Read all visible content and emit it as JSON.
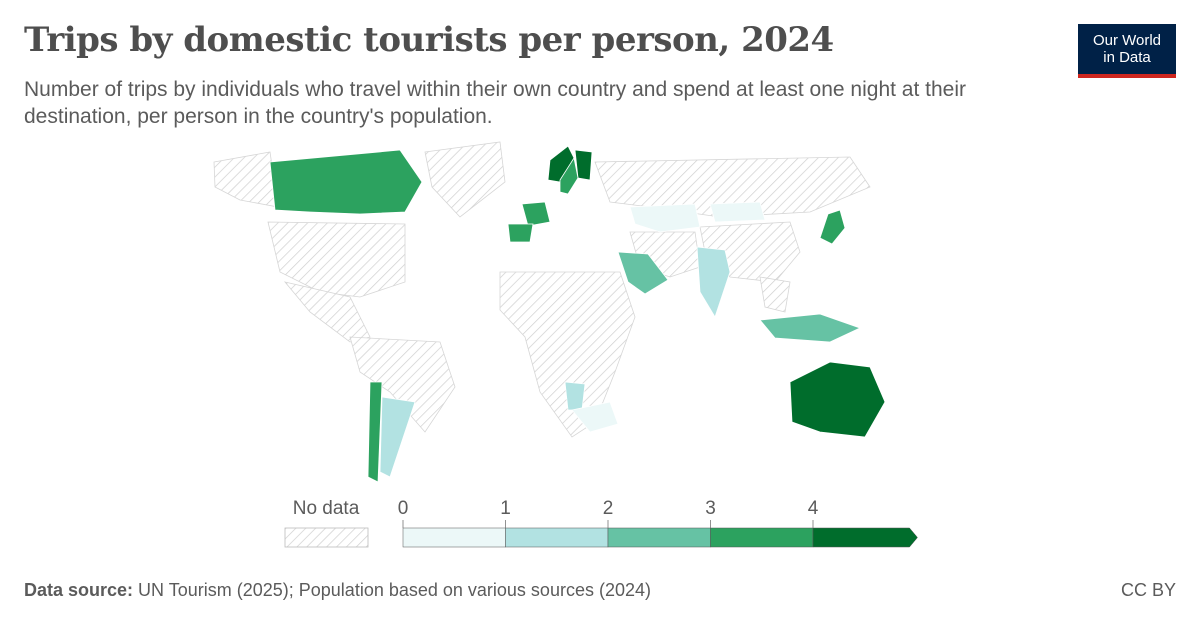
{
  "header": {
    "title": "Trips by domestic tourists per person, 2024",
    "subtitle": "Number of trips by individuals who travel within their own country and spend at least one night at their destination, per person in the country's population."
  },
  "logo": {
    "line1": "Our World",
    "line2": "in Data",
    "bg_color": "#002147",
    "accent_color": "#ce261e"
  },
  "legend": {
    "no_data_label": "No data",
    "ticks": [
      "0",
      "1",
      "2",
      "3",
      "4"
    ],
    "bins": [
      {
        "min": 0,
        "max": 1,
        "color": "#ecf8f8"
      },
      {
        "min": 1,
        "max": 2,
        "color": "#b2e2e2"
      },
      {
        "min": 2,
        "max": 3,
        "color": "#66c2a4"
      },
      {
        "min": 3,
        "max": 4,
        "color": "#2ca25f"
      },
      {
        "min": 4,
        "max": null,
        "color": "#006d2c"
      }
    ]
  },
  "map_regions": [
    {
      "name": "Canada",
      "bin": 3
    },
    {
      "name": "Finland",
      "bin": 4
    },
    {
      "name": "Norway",
      "bin": 4
    },
    {
      "name": "Sweden",
      "bin": 3
    },
    {
      "name": "France",
      "bin": 3
    },
    {
      "name": "Spain",
      "bin": 3
    },
    {
      "name": "Saudi Arabia",
      "bin": 2
    },
    {
      "name": "Japan",
      "bin": 3
    },
    {
      "name": "Indonesia",
      "bin": 2
    },
    {
      "name": "Australia",
      "bin": 4
    },
    {
      "name": "Chile",
      "bin": 3
    },
    {
      "name": "Argentina",
      "bin": 1
    },
    {
      "name": "India",
      "bin": 1
    },
    {
      "name": "Namibia",
      "bin": 1
    },
    {
      "name": "South Africa",
      "bin": 0
    },
    {
      "name": "Kazakhstan",
      "bin": 0
    },
    {
      "name": "Mongolia",
      "bin": 0
    }
  ],
  "footer": {
    "source_label": "Data source:",
    "source_text": " UN Tourism (2025); Population based on various sources (2024)",
    "license": "CC BY"
  }
}
